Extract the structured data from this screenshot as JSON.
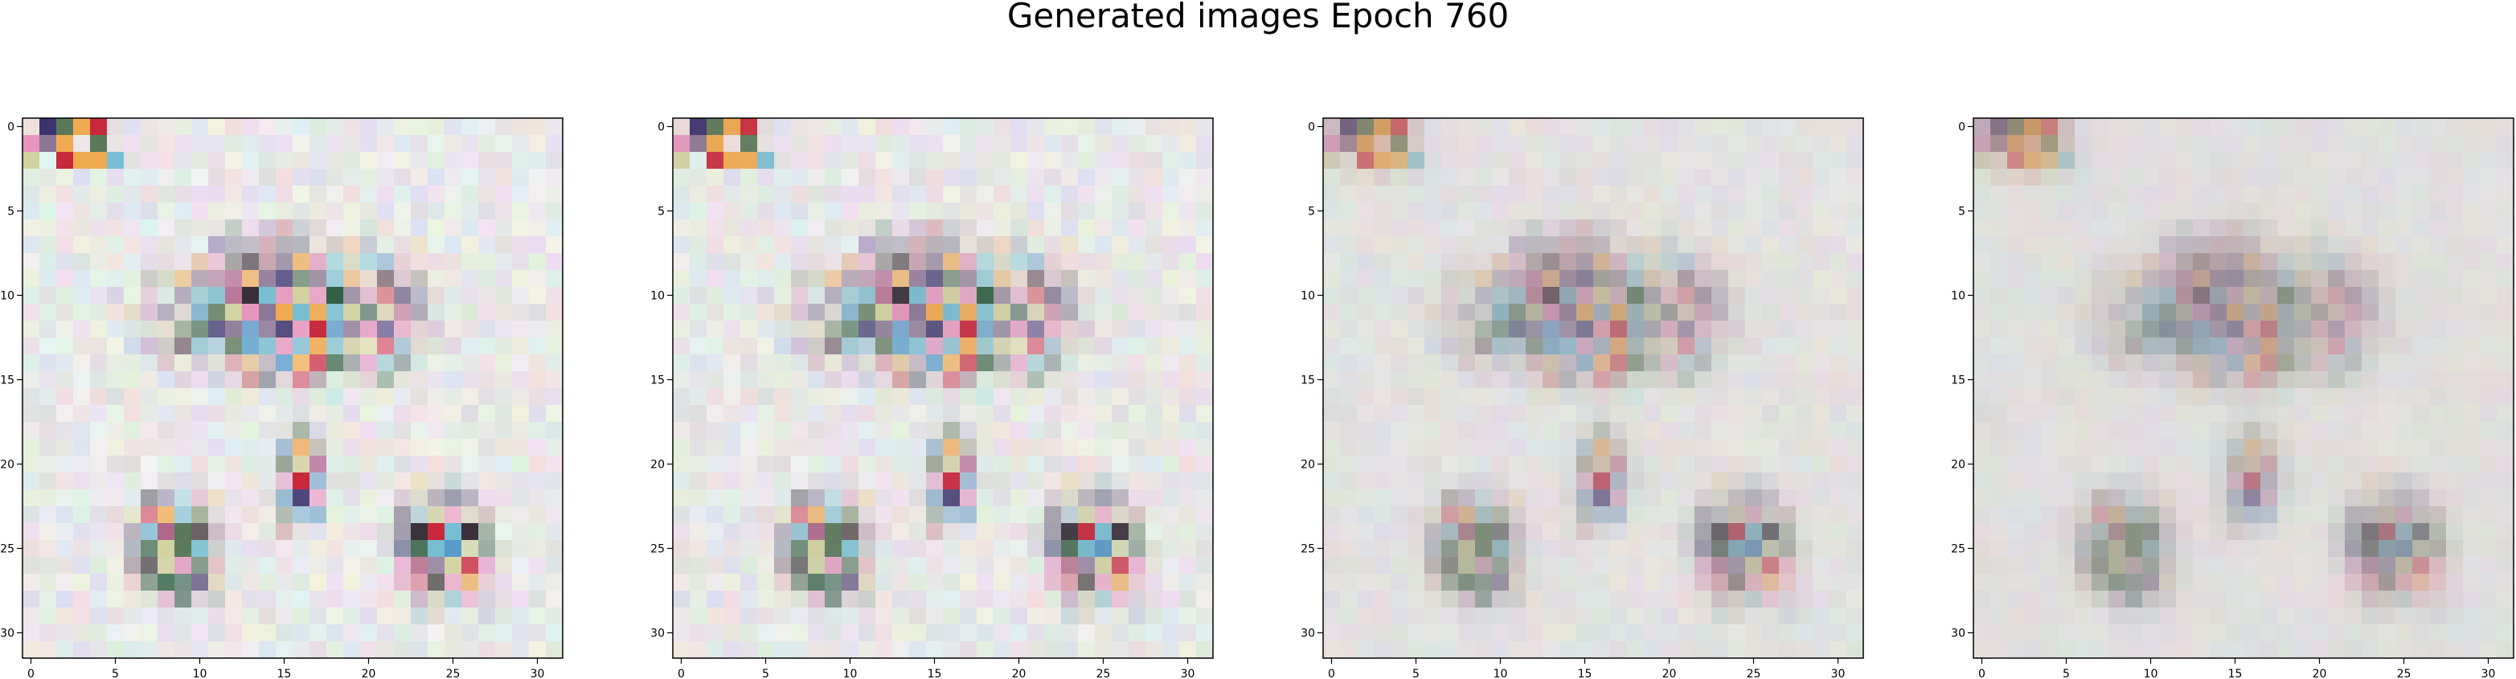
{
  "figure": {
    "title": "Generated images Epoch 760"
  },
  "chart_data": {
    "type": "heatmap",
    "title": "Generated images Epoch 760",
    "panel_count": 4,
    "image_shape": [
      32,
      32,
      3
    ],
    "xlim": [
      -0.5,
      31.5
    ],
    "ylim": [
      31.5,
      -0.5
    ],
    "x_ticks": [
      0,
      5,
      10,
      15,
      20,
      25,
      30
    ],
    "y_ticks": [
      0,
      5,
      10,
      15,
      20,
      25,
      30
    ],
    "grid": false,
    "panels": [
      {
        "blur": 0.0
      },
      {
        "blur": 0.08
      },
      {
        "blur": 0.45
      },
      {
        "blur": 0.62
      }
    ]
  }
}
